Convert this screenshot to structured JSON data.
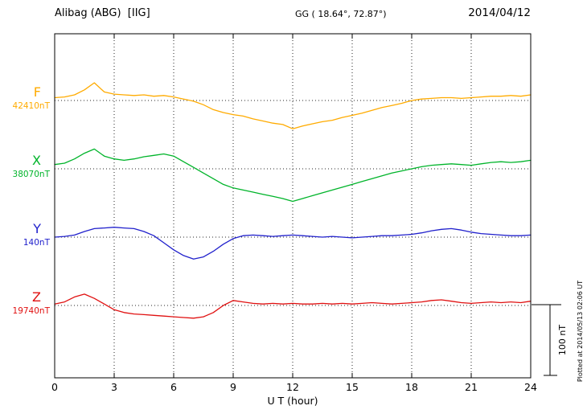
{
  "header": {
    "station": "Alibag (ABG)  [IIG]",
    "coords": "GG ( 18.64°, 72.87°)",
    "date": "2014/04/12"
  },
  "axis": {
    "xlabel": "U T (hour)",
    "ticks": [
      0,
      3,
      6,
      9,
      12,
      15,
      18,
      21,
      24
    ]
  },
  "footer_note": "Plotted at 2014/05/13 02:06 UT",
  "colors": {
    "frame": "#000000",
    "grid": "#000000"
  },
  "chart_data": {
    "type": "line",
    "title": "Alibag (ABG) [IIG] magnetogram 2014/04/12",
    "xlabel": "U T (hour)",
    "x_start": 0,
    "x_end": 24,
    "x_step": 0.5,
    "x_ticks": [
      0,
      3,
      6,
      9,
      12,
      15,
      18,
      21,
      24
    ],
    "grid": "dotted vertical at 3h intervals, dotted horizontal baselines",
    "scale": {
      "label": "100 nT",
      "nT": 100
    },
    "series": [
      {
        "name": "F",
        "baseline_label": "42410nT",
        "baseline_nT": 42410,
        "color": "#FFAB00",
        "offsets_nT": [
          4,
          5,
          8,
          15,
          25,
          12,
          9,
          8,
          7,
          8,
          6,
          7,
          5,
          2,
          -1,
          -6,
          -13,
          -17,
          -20,
          -22,
          -26,
          -29,
          -32,
          -34,
          -40,
          -36,
          -33,
          -30,
          -28,
          -24,
          -21,
          -18,
          -14,
          -10,
          -7,
          -4,
          0,
          2,
          3,
          4,
          4,
          3,
          4,
          5,
          6,
          6,
          7,
          6,
          8
        ]
      },
      {
        "name": "X",
        "baseline_label": "38070nT",
        "baseline_nT": 38070,
        "color": "#00B42A",
        "offsets_nT": [
          6,
          8,
          14,
          22,
          28,
          18,
          14,
          12,
          14,
          17,
          19,
          21,
          18,
          10,
          2,
          -6,
          -14,
          -22,
          -27,
          -30,
          -33,
          -36,
          -39,
          -42,
          -46,
          -42,
          -38,
          -34,
          -30,
          -26,
          -22,
          -18,
          -14,
          -10,
          -6,
          -3,
          0,
          3,
          5,
          6,
          7,
          6,
          5,
          7,
          9,
          10,
          9,
          10,
          12
        ]
      },
      {
        "name": "Y",
        "baseline_label": "140nT",
        "baseline_nT": 140,
        "color": "#2020CC",
        "offsets_nT": [
          0,
          1,
          3,
          8,
          12,
          13,
          14,
          13,
          12,
          8,
          2,
          -8,
          -18,
          -26,
          -31,
          -28,
          -20,
          -10,
          -2,
          2,
          3,
          2,
          1,
          2,
          3,
          2,
          1,
          0,
          1,
          0,
          -1,
          0,
          1,
          2,
          2,
          3,
          4,
          6,
          9,
          11,
          12,
          10,
          7,
          5,
          4,
          3,
          2,
          2,
          3
        ]
      },
      {
        "name": "Z",
        "baseline_label": "19740nT",
        "baseline_nT": 19740,
        "color": "#E01010",
        "offsets_nT": [
          2,
          5,
          12,
          16,
          10,
          2,
          -6,
          -10,
          -12,
          -13,
          -14,
          -15,
          -16,
          -17,
          -18,
          -16,
          -10,
          0,
          7,
          5,
          3,
          2,
          3,
          2,
          3,
          2,
          2,
          3,
          2,
          3,
          2,
          3,
          4,
          3,
          2,
          3,
          4,
          5,
          7,
          8,
          6,
          4,
          3,
          4,
          5,
          4,
          5,
          4,
          6
        ]
      }
    ]
  }
}
